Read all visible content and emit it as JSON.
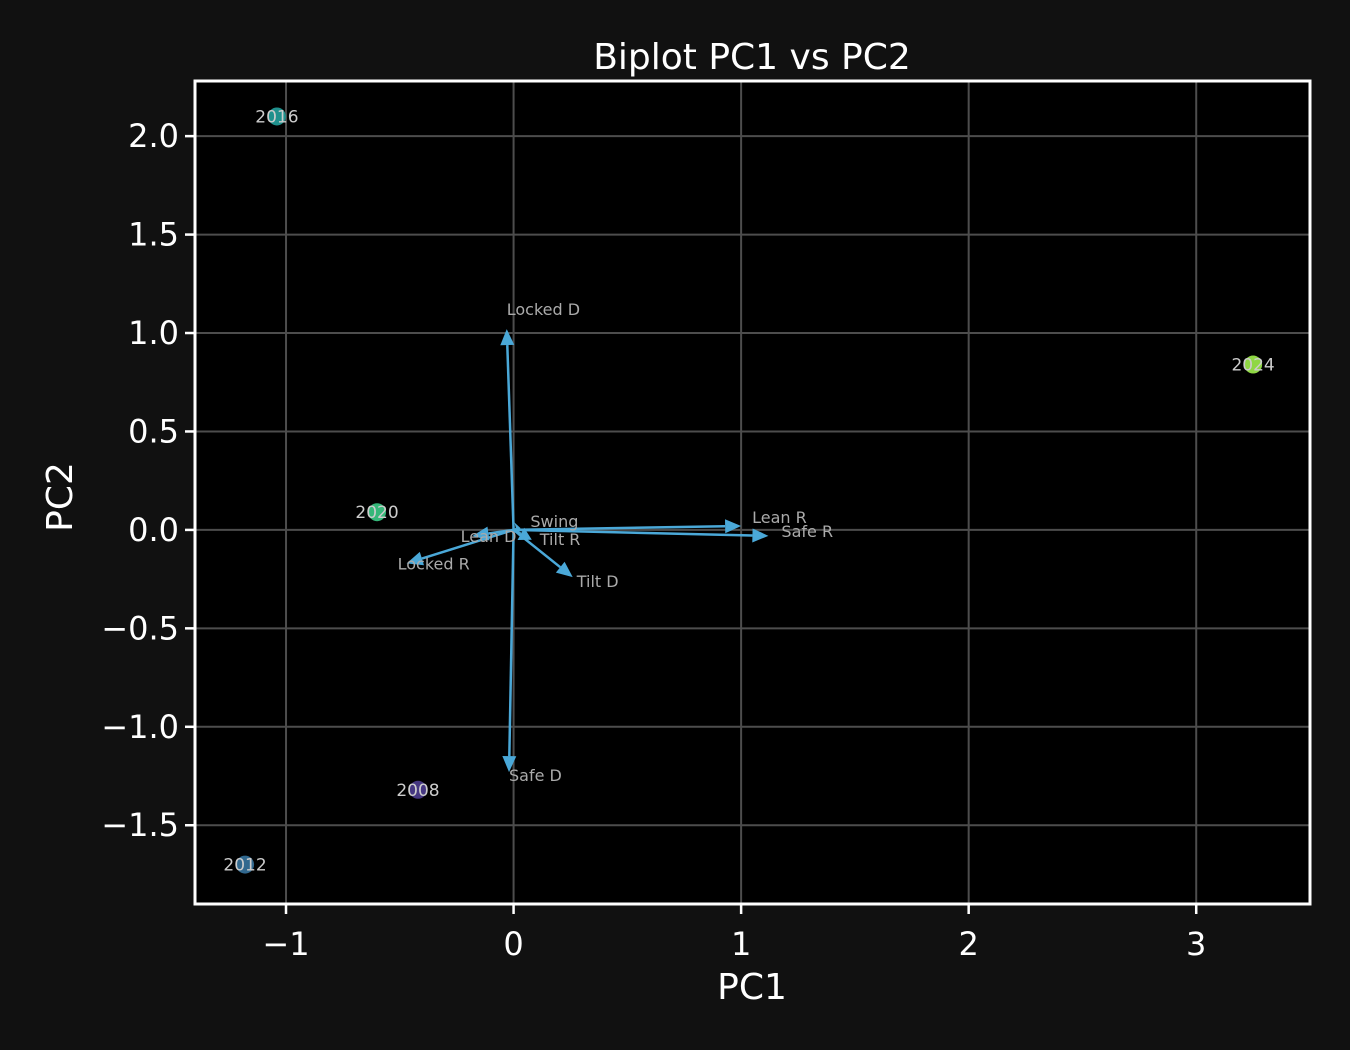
{
  "chart_data": {
    "type": "scatter",
    "title": "Biplot PC1 vs PC2",
    "xlabel": "PC1",
    "ylabel": "PC2",
    "xlim": [
      -1.4,
      3.5
    ],
    "ylim": [
      -1.9,
      2.28
    ],
    "xticks": [
      -1,
      0,
      1,
      2,
      3
    ],
    "xtick_labels": [
      "−1",
      "0",
      "1",
      "2",
      "3"
    ],
    "yticks": [
      -1.5,
      -1.0,
      -0.5,
      0.0,
      0.5,
      1.0,
      1.5,
      2.0
    ],
    "ytick_labels": [
      "−1.5",
      "−1.0",
      "−0.5",
      "0.0",
      "0.5",
      "1.0",
      "1.5",
      "2.0"
    ],
    "grid": true,
    "points": [
      {
        "label": "2008",
        "x": -0.42,
        "y": -1.32,
        "color": "#453781"
      },
      {
        "label": "2012",
        "x": -1.18,
        "y": -1.7,
        "color": "#31688e"
      },
      {
        "label": "2016",
        "x": -1.04,
        "y": 2.1,
        "color": "#20908d"
      },
      {
        "label": "2020",
        "x": -0.6,
        "y": 0.09,
        "color": "#35b779"
      },
      {
        "label": "2024",
        "x": 3.25,
        "y": 0.84,
        "color": "#8fd744"
      }
    ],
    "loadings": [
      {
        "label": "Locked D",
        "x": -0.03,
        "y": 1.02
      },
      {
        "label": "Safe D",
        "x": -0.02,
        "y": -1.23
      },
      {
        "label": "Lean R",
        "x": 1.0,
        "y": 0.02
      },
      {
        "label": "Safe R",
        "x": 1.12,
        "y": -0.03
      },
      {
        "label": "Locked R",
        "x": -0.47,
        "y": -0.17
      },
      {
        "label": "Lean D",
        "x": -0.18,
        "y": -0.03
      },
      {
        "label": "Tilt R",
        "x": 0.08,
        "y": -0.05
      },
      {
        "label": "Tilt D",
        "x": 0.26,
        "y": -0.24
      },
      {
        "label": "Swing",
        "x": 0.03,
        "y": 0.01
      }
    ],
    "arrow_color": "#4aa8d8"
  }
}
